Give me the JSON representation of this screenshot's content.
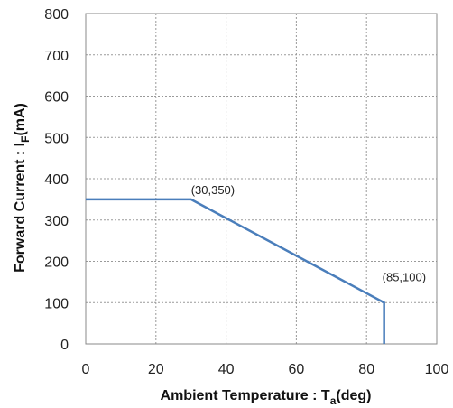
{
  "chart_data": {
    "type": "line",
    "title": "",
    "xlabel": {
      "main": "Ambient Temperature  : T",
      "sub": "a",
      "tail": "(deg)"
    },
    "ylabel": {
      "main": "Forward Current : I",
      "sub": "F",
      "tail": "(mA)"
    },
    "xlim": [
      0,
      100
    ],
    "ylim": [
      0,
      800
    ],
    "xticks": [
      0,
      20,
      40,
      60,
      80,
      100
    ],
    "yticks": [
      0,
      100,
      200,
      300,
      400,
      500,
      600,
      700,
      800
    ],
    "grid": true,
    "legend": "none",
    "series": [
      {
        "color": "#4a7ebb",
        "points": [
          [
            0,
            350
          ],
          [
            30,
            350
          ],
          [
            85,
            100
          ],
          [
            85,
            0
          ]
        ]
      }
    ],
    "annotations": [
      {
        "text": "(30,350)",
        "x": 30,
        "y": 350
      },
      {
        "text": "(85,100)",
        "x": 85,
        "y": 100
      }
    ]
  }
}
